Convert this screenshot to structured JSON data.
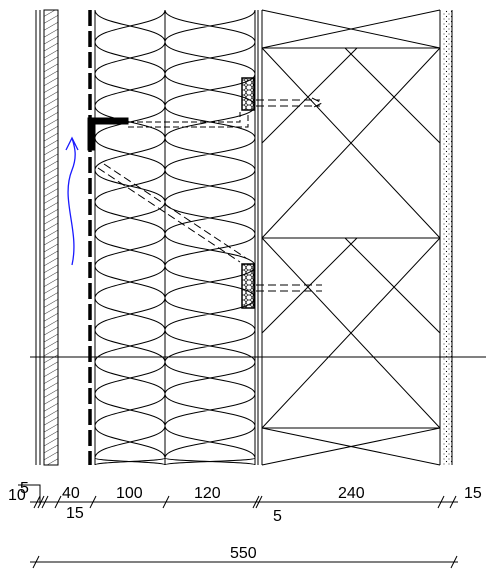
{
  "dimensions": {
    "top": [
      "5",
      "10",
      "40",
      "15",
      "100",
      "120",
      "5",
      "240",
      "15"
    ],
    "total": "550"
  }
}
